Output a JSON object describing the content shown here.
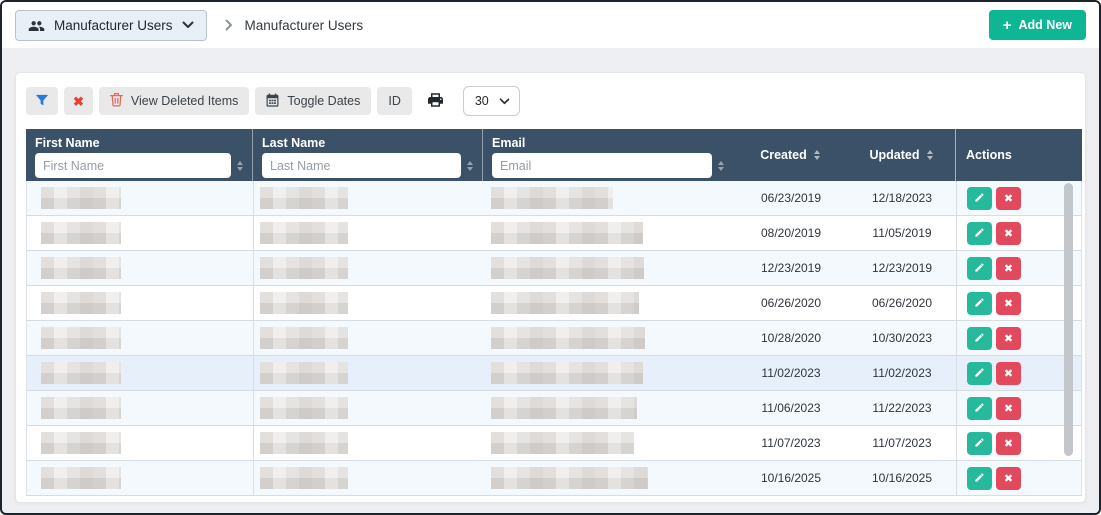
{
  "topbar": {
    "menu_button_label": "Manufacturer Users",
    "breadcrumb_current": "Manufacturer Users",
    "add_new": {
      "icon": "+",
      "label": "Add New"
    }
  },
  "toolbar": {
    "clear_icon": "✖",
    "view_deleted_label": "View Deleted Items",
    "toggle_dates_label": "Toggle Dates",
    "id_label": "ID",
    "page_size_value": "30"
  },
  "table": {
    "headers": {
      "first_name": "First Name",
      "last_name": "Last Name",
      "email": "Email",
      "created": "Created",
      "updated": "Updated",
      "actions": "Actions"
    },
    "filters": {
      "first_name_placeholder": "First Name",
      "last_name_placeholder": "Last Name",
      "email_placeholder": "Email"
    },
    "delete_icon": "✖",
    "redaction_widths": {
      "first_name": 80,
      "last_name": 88
    },
    "rows": [
      {
        "created": "06/23/2019",
        "updated": "12/18/2023",
        "email_redact_width": 122,
        "highlighted": false
      },
      {
        "created": "08/20/2019",
        "updated": "11/05/2019",
        "email_redact_width": 152,
        "highlighted": false
      },
      {
        "created": "12/23/2019",
        "updated": "12/23/2019",
        "email_redact_width": 153,
        "highlighted": false
      },
      {
        "created": "06/26/2020",
        "updated": "06/26/2020",
        "email_redact_width": 148,
        "highlighted": false
      },
      {
        "created": "10/28/2020",
        "updated": "10/30/2023",
        "email_redact_width": 154,
        "highlighted": false
      },
      {
        "created": "11/02/2023",
        "updated": "11/02/2023",
        "email_redact_width": 152,
        "highlighted": true
      },
      {
        "created": "11/06/2023",
        "updated": "11/22/2023",
        "email_redact_width": 146,
        "highlighted": false
      },
      {
        "created": "11/07/2023",
        "updated": "11/07/2023",
        "email_redact_width": 143,
        "highlighted": false
      },
      {
        "created": "10/16/2025",
        "updated": "10/16/2025",
        "email_redact_width": 157,
        "highlighted": false
      }
    ]
  },
  "colors": {
    "accent_teal": "#0fb694",
    "edit_teal": "#27b99c",
    "delete_red": "#e2495c",
    "table_header_bg": "#3a5168",
    "filter_blue": "#2479e2",
    "clear_red": "#ee3e32",
    "trash_red": "#e4695f",
    "row_alt": "#f4f9fd",
    "row_highlight": "#e7f0fa"
  }
}
